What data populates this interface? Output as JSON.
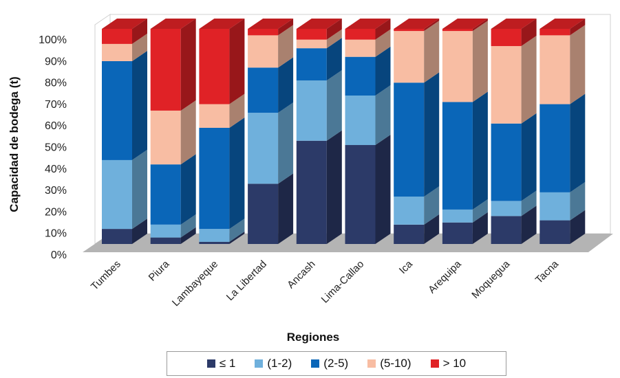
{
  "chart_data": {
    "type": "bar",
    "stacked": true,
    "three_d": true,
    "ylabel": "Capacidad de bodega (t)",
    "xlabel": "Regiones",
    "ylim": [
      0,
      100
    ],
    "ytick_labels": [
      "0%",
      "10%",
      "20%",
      "30%",
      "40%",
      "50%",
      "60%",
      "70%",
      "80%",
      "90%",
      "100%"
    ],
    "categories": [
      "Tumbes",
      "Piura",
      "Lambayeque",
      "La Libertad",
      "Ancash",
      "Lima-Callao",
      "Ica",
      "Arequipa",
      "Moquegua",
      "Tacna"
    ],
    "series": [
      {
        "name": "≤ 1",
        "color": "#2c3a68",
        "values": [
          7,
          3,
          1,
          28,
          48,
          46,
          9,
          10,
          13,
          11
        ]
      },
      {
        "name": "(1-2)",
        "color": "#6fb0dc",
        "values": [
          32,
          6,
          6,
          33,
          28,
          23,
          13,
          6,
          7,
          13
        ]
      },
      {
        "name": "(2-5)",
        "color": "#0a66b8",
        "values": [
          46,
          28,
          47,
          21,
          15,
          18,
          53,
          50,
          36,
          41
        ]
      },
      {
        "name": "(5-10)",
        "color": "#f8bda3",
        "values": [
          8,
          25,
          11,
          15,
          4,
          8,
          24,
          33,
          36,
          32
        ]
      },
      {
        "name": "> 10",
        "color": "#e02226",
        "values": [
          7,
          38,
          35,
          3,
          5,
          5,
          1,
          1,
          8,
          3
        ]
      }
    ],
    "grid": false,
    "legend_position": "bottom"
  }
}
